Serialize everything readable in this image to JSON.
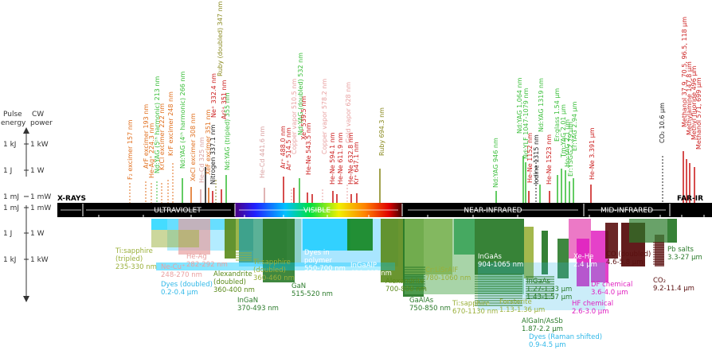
{
  "axis": {
    "header_pulse": "Pulse\nenergy",
    "header_cw": "CW\npower",
    "levels": [
      {
        "pulse": "1 kJ",
        "cw": "1 kW"
      },
      {
        "pulse": "1 J",
        "cw": "1 W"
      },
      {
        "pulse": "1 mJ",
        "cw": "1 mW"
      }
    ]
  },
  "bands": [
    {
      "label": "X-RAYS",
      "color": "#000000"
    },
    {
      "label": "ULTRAVIOLET",
      "color": "#000000"
    },
    {
      "label": "VISIBLE",
      "color": "#000000"
    },
    {
      "label": "NEAR-INFRARED",
      "color": "#000000"
    },
    {
      "label": "MID-INFRARED",
      "color": "#000000"
    },
    {
      "label": "FAR-IR",
      "color": "#000000"
    }
  ],
  "ticks": [
    "100 nm",
    "200 nm",
    "300 nm",
    "400 nm",
    "500 nm",
    "600 nm",
    "700 nm",
    "800 nm",
    "900 nm",
    "1 μm",
    "3 μm",
    "10 μm",
    "30 μm",
    "1 mm"
  ],
  "gas_lasers": [
    {
      "label": "F₂ excimer  157 nm",
      "color": "#e07020"
    },
    {
      "label": "ArF  excimer  193 nm",
      "color": "#e07020"
    },
    {
      "label": "He-Ag⁺  224.3 nm",
      "color": "#e07020"
    },
    {
      "label": "KrCl  excimer  222 nm",
      "color": "#e07020"
    },
    {
      "label": "Nd:YAG (5ᵗʰ harmonic) 213 nm",
      "color": "#3cbf3c"
    },
    {
      "label": "KrF  excimer  248 nm",
      "color": "#e07020"
    },
    {
      "label": "Nd:YAG (4ᵗʰ harmonic)  266 nm",
      "color": "#3cbf3c"
    },
    {
      "label": "XeCl  excimer  308 nm",
      "color": "#e07020"
    },
    {
      "label": "He-Cd  325 nm",
      "color": "#d9a0a0"
    },
    {
      "label": "Nitrogen  337.1 nm",
      "color": "#202020"
    },
    {
      "label": "XeF  excimer  351 nm",
      "color": "#e07020"
    },
    {
      "label": "Nd:YAG (tripled)  355 nm",
      "color": "#3cbf3c"
    },
    {
      "label": "Ne⁺  332.4 nm",
      "color": "#cc2020"
    },
    {
      "label": "Ruby (doubled)  347 nm",
      "color": "#8a8a20"
    },
    {
      "label": "Ar²⁺  351 nm",
      "color": "#cc2020"
    },
    {
      "label": "He-Cd  441.6 nm",
      "color": "#d9a0a0"
    },
    {
      "label": "Ar⁺  488.0 nm",
      "color": "#cc2020"
    },
    {
      "label": "Copper vapor  510.5 nm",
      "color": "#e8a0a0"
    },
    {
      "label": "Ar⁺  514.5 nm",
      "color": "#cc2020"
    },
    {
      "label": "Nd:YAG (doubled)  532 nm",
      "color": "#3cbf3c"
    },
    {
      "label": "He-Ne  543.5 nm",
      "color": "#cc2020"
    },
    {
      "label": "Xe⁺  539.5 nm",
      "color": "#cc2020"
    },
    {
      "label": "Copper vapor  578.2 nm",
      "color": "#e8a0a0"
    },
    {
      "label": "He-Ne  594.1 nm",
      "color": "#cc2020"
    },
    {
      "label": "He-Ne  611.9 nm",
      "color": "#cc2020"
    },
    {
      "label": "Gold vapor  628 nm",
      "color": "#e8a0a0"
    },
    {
      "label": "He-Ne  632.8 nm",
      "color": "#cc2020"
    },
    {
      "label": "Kr⁺  647.1 nm",
      "color": "#cc2020"
    },
    {
      "label": "Ruby  694.3 nm",
      "color": "#8a8a20"
    },
    {
      "label": "Nd:YAG  946 nm",
      "color": "#3cbf3c"
    },
    {
      "label": "Nd:YAG  1,064 nm",
      "color": "#3cbf3c"
    },
    {
      "label": "Nd:YLF  1047-1079 nm",
      "color": "#3cbf3c"
    },
    {
      "label": "He-Ne  1152 nm",
      "color": "#cc2020"
    },
    {
      "label": "Iodine  1315 nm",
      "color": "#202020"
    },
    {
      "label": "Nd:YAG  1319 nm",
      "color": "#3cbf3c"
    },
    {
      "label": "He-Ne  1523 nm",
      "color": "#cc2020"
    },
    {
      "label": "Er:glass  1.54 μm",
      "color": "#3cbf3c"
    },
    {
      "label": "Tm:YAG  2.01 μm",
      "color": "#3cbf3c"
    },
    {
      "label": "Ho:YAG  2.1 μm",
      "color": "#3cbf3c"
    },
    {
      "label": "Er:YSGG  2.79 μm",
      "color": "#3cbf3c"
    },
    {
      "label": "Er:YAG  2.94 μm",
      "color": "#3cbf3c"
    },
    {
      "label": "He-Ne  3.391 μm",
      "color": "#cc2020"
    },
    {
      "label": "CO₂  10.6 μm",
      "color": "#202020"
    },
    {
      "label": "Methanol  37.9, 70.5, 96.5, 118 μm",
      "color": "#cc2020"
    },
    {
      "label": "Methylamine  147.8 μm",
      "color": "#cc2020"
    },
    {
      "label": "Methyl fluoride  496 μm",
      "color": "#cc2020"
    },
    {
      "label": "Methanol  571, 699 μm",
      "color": "#cc2020"
    }
  ],
  "lower_labels": [
    {
      "label": "Ti:sapphire\n(tripled)\n235-330 nm",
      "color": "#9ab03a"
    },
    {
      "label": "Ne-Cu⁺\n248-270 nm",
      "color": "#e8a0a0"
    },
    {
      "label": "He-Ag\n282-292 nm",
      "color": "#e8a0a0"
    },
    {
      "label": "Dyes (doubled)\n0.2-0.4 μm",
      "color": "#30b8e8"
    },
    {
      "label": "Alexandrite\n(doubled)\n360-400 nm",
      "color": "#5a8a1a"
    },
    {
      "label": "Ti:sapphire\n(doubled)\n360-460 nm",
      "color": "#9ab03a"
    },
    {
      "label": "InGaN\n370-493 nm",
      "color": "#2a7a2a"
    },
    {
      "label": "Dyes in\npolymer\n550-700 nm",
      "color": "#ffffff"
    },
    {
      "label": "Dyes\n0.38-1.0 μm",
      "color": "#ffffff"
    },
    {
      "label": "GaN\n515-520 nm",
      "color": "#2a7a2a"
    },
    {
      "label": "InGaAlP\n630-685 nm",
      "color": "#ffffff"
    },
    {
      "label": "Alexandrite\n700-800 nm",
      "color": "#5a8a1a"
    },
    {
      "label": "Cr:LiSrAlF\n780-1060 nm",
      "color": "#9ab03a"
    },
    {
      "label": "GaAlAs\n750-850 nm",
      "color": "#2a7a2a"
    },
    {
      "label": "Ti:sapphire\n670-1130 nm",
      "color": "#9ab03a"
    },
    {
      "label": "InGaAs\n904-1065 nm",
      "color": "#ffffff"
    },
    {
      "label": "InGaAs\n1.27-1.33 μm\n1.43-1.57 μm",
      "color": "#2a7a2a"
    },
    {
      "label": "Forsterite\n1.13-1.36 μm",
      "color": "#9ab03a"
    },
    {
      "label": "AlGaIn/AsSb\n1.87-2.2 μm",
      "color": "#2a7a2a"
    },
    {
      "label": "Xe-He\n2.4 μm",
      "color": "#ffffff"
    },
    {
      "label": "DF chemical\n3.6-4.0 μm",
      "color": "#e020c0"
    },
    {
      "label": "HF chemical\n2.6-3.0 μm",
      "color": "#e020c0"
    },
    {
      "label": "CO (doubled)\n4.6-5.8 μm",
      "color": "#5a1010"
    },
    {
      "label": "CO\n5-7 μm",
      "color": "#ffffff"
    },
    {
      "label": "CO₂\n9.2-11.4 μm",
      "color": "#5a1010"
    },
    {
      "label": "Pb salts\n3.3-27 μm",
      "color": "#2a7a2a"
    },
    {
      "label": "Dyes (Raman shifted)\n0.9-4.5 μm",
      "color": "#30b8e8"
    }
  ]
}
